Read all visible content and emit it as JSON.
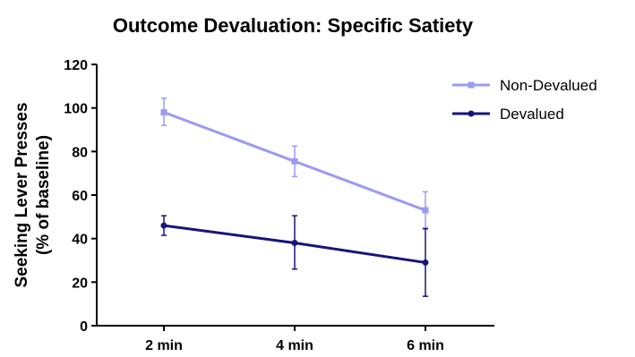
{
  "chart_data": {
    "type": "line",
    "title": "Outcome Devaluation: Specific Satiety",
    "ylabel_lines": [
      "Seeking Lever Presses",
      "(% of baseline)"
    ],
    "xlabel": "",
    "categories": [
      "2 min",
      "4 min",
      "6 min"
    ],
    "ylim": [
      0,
      120
    ],
    "yticks": [
      0,
      20,
      40,
      60,
      80,
      100,
      120
    ],
    "grid": false,
    "legend_position": "top-right",
    "series": [
      {
        "name": "Non-Devalued",
        "color": "#9b9bf2",
        "marker": "square",
        "values": [
          98,
          75.5,
          53
        ],
        "error_low": [
          92,
          68.5,
          45
        ],
        "error_high": [
          104.5,
          82.5,
          61.5
        ]
      },
      {
        "name": "Devalued",
        "color": "#15157a",
        "marker": "circle",
        "values": [
          46,
          38,
          29
        ],
        "error_low": [
          41.5,
          26,
          13.5
        ],
        "error_high": [
          50.5,
          50.5,
          44.5
        ]
      }
    ]
  }
}
